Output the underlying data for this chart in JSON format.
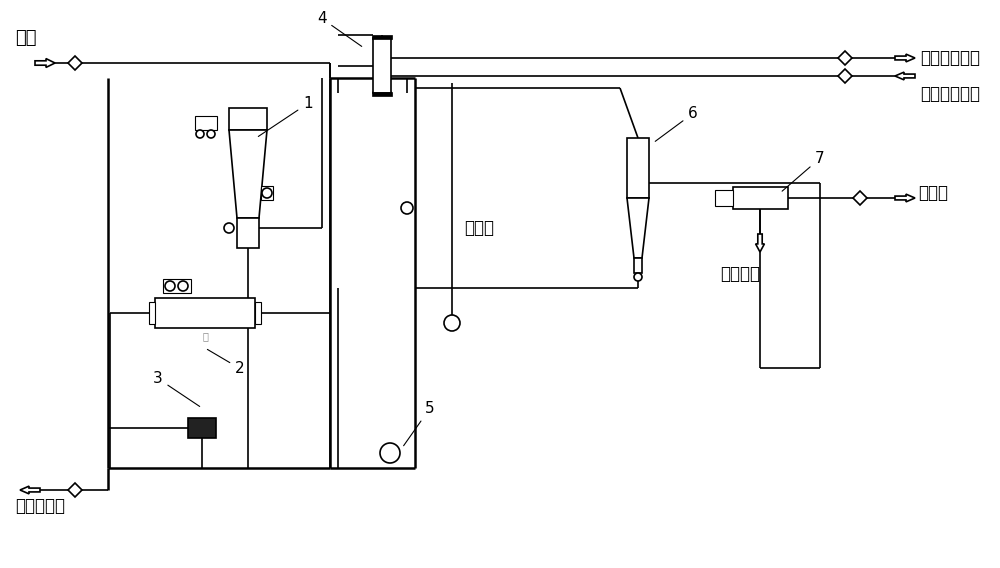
{
  "bg_color": "#ffffff",
  "line_color": "#000000",
  "labels": {
    "steam_in": "蒸汽",
    "steam_cond": "蒸汽冷凝水",
    "cool_return": "循环冷却回水",
    "cool_supply": "循环冷却进水",
    "condensate": "冷凝水",
    "wet_crystal": "湿晶体",
    "mother_liquor": "离心母液",
    "n1": "1",
    "n2": "2",
    "n3": "3",
    "n4": "4",
    "n5": "5",
    "n6": "6",
    "n7": "7"
  }
}
